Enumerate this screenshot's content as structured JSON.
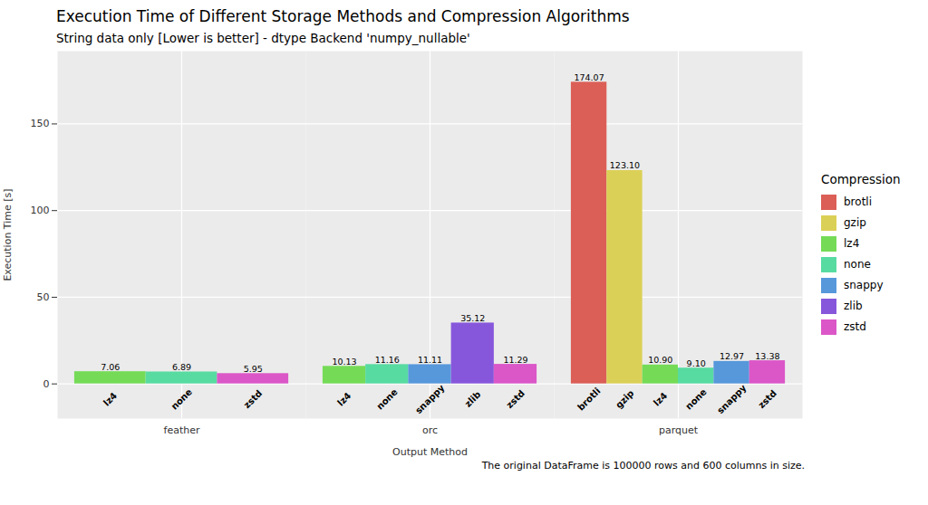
{
  "chart_data": {
    "type": "bar",
    "title": "Execution Time of Different Storage Methods and Compression Algorithms",
    "subtitle": "String data only [Lower is better] - dtype Backend 'numpy_nullable'",
    "x_label": "Output Method",
    "y_label": "Execution Time [s]",
    "legend_title": "Compression",
    "caption": "The original DataFrame is 100000 rows and 600 columns in size.",
    "categories": [
      "feather",
      "orc",
      "parquet"
    ],
    "series": [
      {
        "name": "brotli",
        "color": "#db5f57",
        "values": [
          null,
          null,
          174.07
        ],
        "value_labels": [
          null,
          null,
          "174.07"
        ]
      },
      {
        "name": "gzip",
        "color": "#dbd057",
        "values": [
          null,
          null,
          123.1
        ],
        "value_labels": [
          null,
          null,
          "123.10"
        ]
      },
      {
        "name": "lz4",
        "color": "#75db57",
        "values": [
          7.06,
          10.13,
          10.9
        ],
        "value_labels": [
          "7.06",
          "10.13",
          "10.90"
        ]
      },
      {
        "name": "none",
        "color": "#57dba1",
        "values": [
          6.89,
          11.16,
          9.1
        ],
        "value_labels": [
          "6.89",
          "11.16",
          "9.10"
        ]
      },
      {
        "name": "snappy",
        "color": "#5798db",
        "values": [
          null,
          11.11,
          12.97
        ],
        "value_labels": [
          null,
          "11.11",
          "12.97"
        ]
      },
      {
        "name": "zlib",
        "color": "#8757db",
        "values": [
          null,
          35.12,
          null
        ],
        "value_labels": [
          null,
          "35.12",
          null
        ]
      },
      {
        "name": "zstd",
        "color": "#db57c8",
        "values": [
          5.95,
          11.29,
          13.38
        ],
        "value_labels": [
          "5.95",
          "11.29",
          "13.38"
        ]
      }
    ],
    "ylim": [
      -20,
      192
    ],
    "yticks": [
      0,
      50,
      100,
      150
    ],
    "grid": true,
    "legend": "right",
    "data_labels": true
  }
}
